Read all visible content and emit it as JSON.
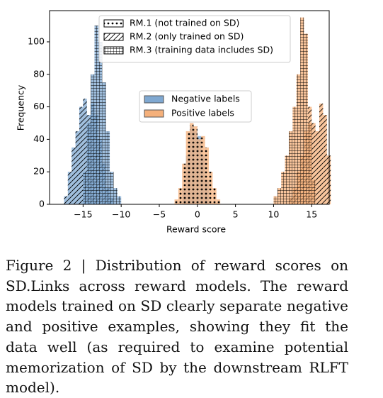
{
  "chart_data": {
    "type": "histogram",
    "xlabel": "Reward score",
    "ylabel": "Frequency",
    "xlim": [
      -19.4,
      17.3
    ],
    "ylim": [
      0,
      119.2
    ],
    "xticks": [
      {
        "value": -15,
        "label": "−15"
      },
      {
        "value": -10,
        "label": "−10"
      },
      {
        "value": -5,
        "label": "−5"
      },
      0,
      5,
      10,
      15
    ],
    "yticks": [
      0,
      20,
      40,
      60,
      80,
      100
    ],
    "classes": [
      {
        "name": "Negative labels",
        "color": "#7fa8d1"
      },
      {
        "name": "Positive labels",
        "color": "#f5b07a"
      }
    ],
    "series": [
      {
        "name": "RM.1 (not trained on SD)",
        "hatch": "dots",
        "histograms": [
          {
            "bins": [
              -2,
              -1.5,
              -1,
              -0.5,
              0,
              0.5,
              1,
              1.5
            ],
            "counts": [
              10,
              30,
              48,
              45,
              42,
              30,
              15
            ]
          },
          {
            "bins": [
              -3,
              -2.5,
              -2,
              -1.5,
              -1,
              -0.5,
              0,
              0.5,
              1,
              1.5,
              2,
              2.5,
              3
            ],
            "counts": [
              3,
              10,
              25,
              45,
              50,
              48,
              40,
              42,
              35,
              20,
              10,
              3
            ]
          }
        ]
      },
      {
        "name": "RM.2 (only trained on SD)",
        "hatch": "diagonal",
        "histograms": [
          {
            "bins": [
              -17.5,
              -17,
              -16.5,
              -16,
              -15.5,
              -15,
              -14.5,
              -14,
              -13.5,
              -13,
              -12.5,
              -12,
              -11.5,
              -11
            ],
            "counts": [
              5,
              20,
              35,
              45,
              60,
              65,
              55,
              62,
              55,
              40,
              25,
              10,
              4
            ]
          },
          {
            "bins": [
              12,
              12.5,
              13,
              13.5,
              14,
              14.5,
              15,
              15.5,
              16,
              16.5,
              17,
              17.5
            ],
            "counts": [
              4,
              10,
              20,
              30,
              45,
              60,
              50,
              45,
              62,
              55,
              30
            ]
          }
        ]
      },
      {
        "name": "RM.3 (training data includes SD)",
        "hatch": "grid",
        "histograms": [
          {
            "bins": [
              -15,
              -14.5,
              -14,
              -13.5,
              -13,
              -12.5,
              -12,
              -11.5,
              -11,
              -10.5,
              -10
            ],
            "counts": [
              20,
              50,
              80,
              110,
              100,
              75,
              45,
              20,
              10,
              5
            ]
          },
          {
            "bins": [
              10,
              10.5,
              11,
              11.5,
              12,
              12.5,
              13,
              13.5,
              14,
              14.5,
              15,
              15.5
            ],
            "counts": [
              5,
              10,
              20,
              30,
              45,
              60,
              80,
              115,
              105,
              50,
              15
            ]
          }
        ]
      }
    ]
  },
  "caption": "Figure 2 | Distribution of reward scores on SD.Links across reward models. The reward models trained on SD clearly separate negative and positive examples, showing they fit the data well (as required to examine potential memorization of SD by the downstream RLFT model)."
}
